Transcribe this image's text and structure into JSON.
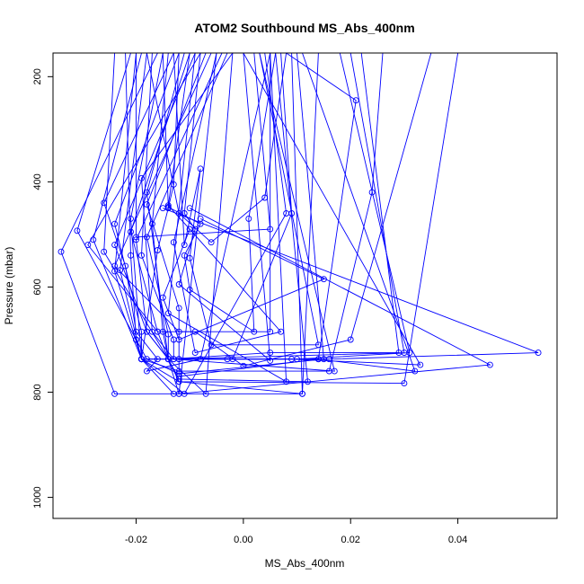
{
  "chart_data": {
    "type": "line",
    "title": "ATOM2 Southbound MS_Abs_400nm",
    "xlabel": "MS_Abs_400nm",
    "ylabel": "Pressure (mbar)",
    "xlim": [
      -0.0355,
      0.0585
    ],
    "ylim": [
      1040,
      155
    ],
    "y_reversed": true,
    "x_ticks": [
      -0.02,
      0.0,
      0.02,
      0.04
    ],
    "x_tick_labels": [
      "-0.02",
      "0.00",
      "0.02",
      "0.04"
    ],
    "y_ticks": [
      200,
      400,
      600,
      800,
      1000
    ],
    "y_tick_labels": [
      "200",
      "400",
      "600",
      "800",
      "1000"
    ],
    "grid": false,
    "legend": "none",
    "line_color": "#0000ff",
    "marker": "open-circle",
    "series": [
      {
        "points": [
          [
            -0.02,
            155
          ],
          [
            -0.024,
            570
          ],
          [
            -0.019,
            737
          ],
          [
            -0.012,
            737
          ],
          [
            -0.012,
            770
          ],
          [
            0.014,
            737
          ],
          [
            0.021,
            245
          ],
          [
            0.008,
            155
          ]
        ]
      },
      {
        "points": [
          [
            -0.013,
            155
          ],
          [
            -0.026,
            440
          ],
          [
            -0.022,
            560
          ],
          [
            -0.02,
            685
          ],
          [
            -0.016,
            737
          ],
          [
            -0.018,
            760
          ],
          [
            -0.008,
            737
          ],
          [
            0.005,
            155
          ]
        ]
      },
      {
        "points": [
          [
            -0.021,
            155
          ],
          [
            -0.031,
            493
          ],
          [
            -0.02,
            700
          ],
          [
            -0.019,
            737
          ],
          [
            -0.003,
            737
          ],
          [
            0.009,
            737
          ],
          [
            0.033,
            748
          ],
          [
            0.0,
            155
          ]
        ]
      },
      {
        "points": [
          [
            -0.008,
            155
          ],
          [
            -0.029,
            520
          ],
          [
            -0.016,
            685
          ],
          [
            0.005,
            685
          ],
          [
            0.005,
            155
          ]
        ]
      },
      {
        "points": [
          [
            -0.019,
            155
          ],
          [
            -0.028,
            510
          ],
          [
            -0.019,
            737
          ],
          [
            0.01,
            737
          ],
          [
            0.031,
            725
          ],
          [
            0.018,
            155
          ]
        ]
      },
      {
        "points": [
          [
            -0.016,
            155
          ],
          [
            -0.034,
            533
          ],
          [
            -0.024,
            803
          ],
          [
            -0.012,
            803
          ],
          [
            -0.005,
            155
          ]
        ]
      },
      {
        "points": [
          [
            -0.024,
            155
          ],
          [
            -0.026,
            533
          ],
          [
            -0.014,
            737
          ],
          [
            0.016,
            737
          ],
          [
            0.055,
            725
          ],
          [
            -0.015,
            450
          ]
        ]
      },
      {
        "points": [
          [
            -0.012,
            155
          ],
          [
            -0.024,
            480
          ],
          [
            -0.019,
            685
          ],
          [
            -0.019,
            737
          ],
          [
            -0.013,
            803
          ],
          [
            0.011,
            803
          ],
          [
            0.014,
            155
          ]
        ]
      },
      {
        "points": [
          [
            -0.009,
            155
          ],
          [
            -0.024,
            520
          ],
          [
            -0.018,
            685
          ],
          [
            -0.014,
            737
          ],
          [
            0.005,
            725
          ],
          [
            0.029,
            725
          ],
          [
            0.022,
            155
          ]
        ]
      },
      {
        "points": [
          [
            -0.015,
            155
          ],
          [
            -0.021,
            470
          ],
          [
            -0.019,
            737
          ],
          [
            -0.012,
            780
          ],
          [
            0.03,
            783
          ],
          [
            0.04,
            155
          ]
        ]
      },
      {
        "points": [
          [
            -0.006,
            155
          ],
          [
            -0.024,
            560
          ],
          [
            -0.012,
            685
          ],
          [
            -0.009,
            685
          ],
          [
            0.0,
            750
          ],
          [
            0.02,
            700
          ],
          [
            0.035,
            155
          ]
        ]
      },
      {
        "points": [
          [
            -0.004,
            155
          ],
          [
            -0.02,
            510
          ],
          [
            -0.018,
            685
          ],
          [
            -0.014,
            737
          ],
          [
            0.03,
            725
          ],
          [
            0.02,
            155
          ]
        ]
      },
      {
        "points": [
          [
            -0.018,
            155
          ],
          [
            -0.023,
            568
          ],
          [
            -0.019,
            737
          ],
          [
            -0.012,
            760
          ],
          [
            0.016,
            760
          ],
          [
            0.024,
            420
          ],
          [
            0.026,
            155
          ]
        ]
      },
      {
        "points": [
          [
            -0.01,
            155
          ],
          [
            -0.021,
            495
          ],
          [
            -0.016,
            685
          ],
          [
            -0.014,
            737
          ],
          [
            -0.012,
            775
          ],
          [
            0.012,
            780
          ],
          [
            0.006,
            155
          ]
        ]
      },
      {
        "points": [
          [
            -0.002,
            155
          ],
          [
            -0.019,
            393
          ],
          [
            -0.017,
            685
          ],
          [
            -0.013,
            737
          ],
          [
            0.017,
            760
          ],
          [
            0.003,
            155
          ]
        ]
      },
      {
        "points": [
          [
            -0.014,
            155
          ],
          [
            -0.017,
            480
          ],
          [
            -0.015,
            685
          ],
          [
            -0.014,
            737
          ],
          [
            -0.012,
            780
          ],
          [
            0.011,
            803
          ],
          [
            0.009,
            155
          ]
        ]
      },
      {
        "points": [
          [
            -0.011,
            155
          ],
          [
            -0.018,
            420
          ],
          [
            -0.014,
            737
          ],
          [
            -0.007,
            803
          ],
          [
            -0.002,
            155
          ]
        ]
      },
      {
        "points": [
          [
            -0.007,
            155
          ],
          [
            -0.018,
            443
          ],
          [
            -0.012,
            640
          ],
          [
            -0.012,
            737
          ],
          [
            -0.002,
            737
          ],
          [
            0.009,
            460
          ],
          [
            0.007,
            155
          ]
        ]
      },
      {
        "points": [
          [
            -0.017,
            155
          ],
          [
            -0.019,
            540
          ],
          [
            -0.013,
            700
          ],
          [
            -0.013,
            737
          ],
          [
            0.014,
            737
          ],
          [
            0.032,
            760
          ],
          [
            0.011,
            155
          ]
        ]
      },
      {
        "points": [
          [
            -0.003,
            155
          ],
          [
            -0.018,
            505
          ],
          [
            -0.014,
            690
          ],
          [
            -0.014,
            737
          ],
          [
            -0.012,
            803
          ],
          [
            0.046,
            748
          ],
          [
            -0.01,
            450
          ]
        ]
      },
      {
        "points": [
          [
            -0.012,
            155
          ],
          [
            -0.013,
            405
          ],
          [
            -0.014,
            450
          ],
          [
            -0.016,
            530
          ],
          [
            -0.019,
            737
          ],
          [
            -0.011,
            803
          ],
          [
            0.008,
            460
          ],
          [
            0.004,
            155
          ]
        ]
      },
      {
        "points": [
          [
            -0.01,
            155
          ],
          [
            -0.014,
            445
          ],
          [
            -0.01,
            490
          ],
          [
            -0.015,
            620
          ],
          [
            -0.012,
            700
          ],
          [
            0.015,
            585
          ],
          [
            -0.008,
            470
          ]
        ]
      },
      {
        "points": [
          [
            -0.022,
            155
          ],
          [
            -0.021,
            540
          ],
          [
            -0.02,
            700
          ],
          [
            -0.018,
            737
          ],
          [
            -0.012,
            765
          ],
          [
            0.015,
            737
          ],
          [
            0.01,
            155
          ]
        ]
      },
      {
        "points": [
          [
            -0.015,
            155
          ],
          [
            -0.014,
            448
          ],
          [
            -0.008,
            480
          ],
          [
            -0.011,
            540
          ],
          [
            -0.01,
            605
          ],
          [
            0.002,
            685
          ],
          [
            0.001,
            470
          ],
          [
            0.006,
            155
          ]
        ]
      },
      {
        "points": [
          [
            -0.005,
            155
          ],
          [
            -0.013,
            515
          ],
          [
            -0.009,
            725
          ],
          [
            0.007,
            685
          ],
          [
            -0.01,
            490
          ]
        ]
      },
      {
        "points": [
          [
            -0.013,
            155
          ],
          [
            -0.011,
            520
          ],
          [
            -0.008,
            375
          ],
          [
            -0.01,
            545
          ],
          [
            -0.006,
            710
          ],
          [
            0.014,
            710
          ],
          [
            0.003,
            155
          ]
        ]
      },
      {
        "points": [
          [
            -0.008,
            155
          ],
          [
            -0.011,
            460
          ],
          [
            -0.009,
            490
          ],
          [
            -0.012,
            595
          ],
          [
            0.005,
            740
          ],
          [
            0.0,
            155
          ]
        ]
      },
      {
        "points": [
          [
            -0.018,
            155
          ],
          [
            -0.012,
            460
          ],
          [
            -0.006,
            515
          ],
          [
            0.004,
            430
          ],
          [
            0.008,
            155
          ]
        ]
      },
      {
        "points": [
          [
            -0.009,
            155
          ],
          [
            -0.014,
            650
          ],
          [
            0.008,
            780
          ],
          [
            0.005,
            155
          ]
        ]
      },
      {
        "points": [
          [
            -0.02,
            155
          ],
          [
            -0.02,
            505
          ],
          [
            0.005,
            490
          ],
          [
            0.002,
            155
          ]
        ]
      }
    ]
  }
}
